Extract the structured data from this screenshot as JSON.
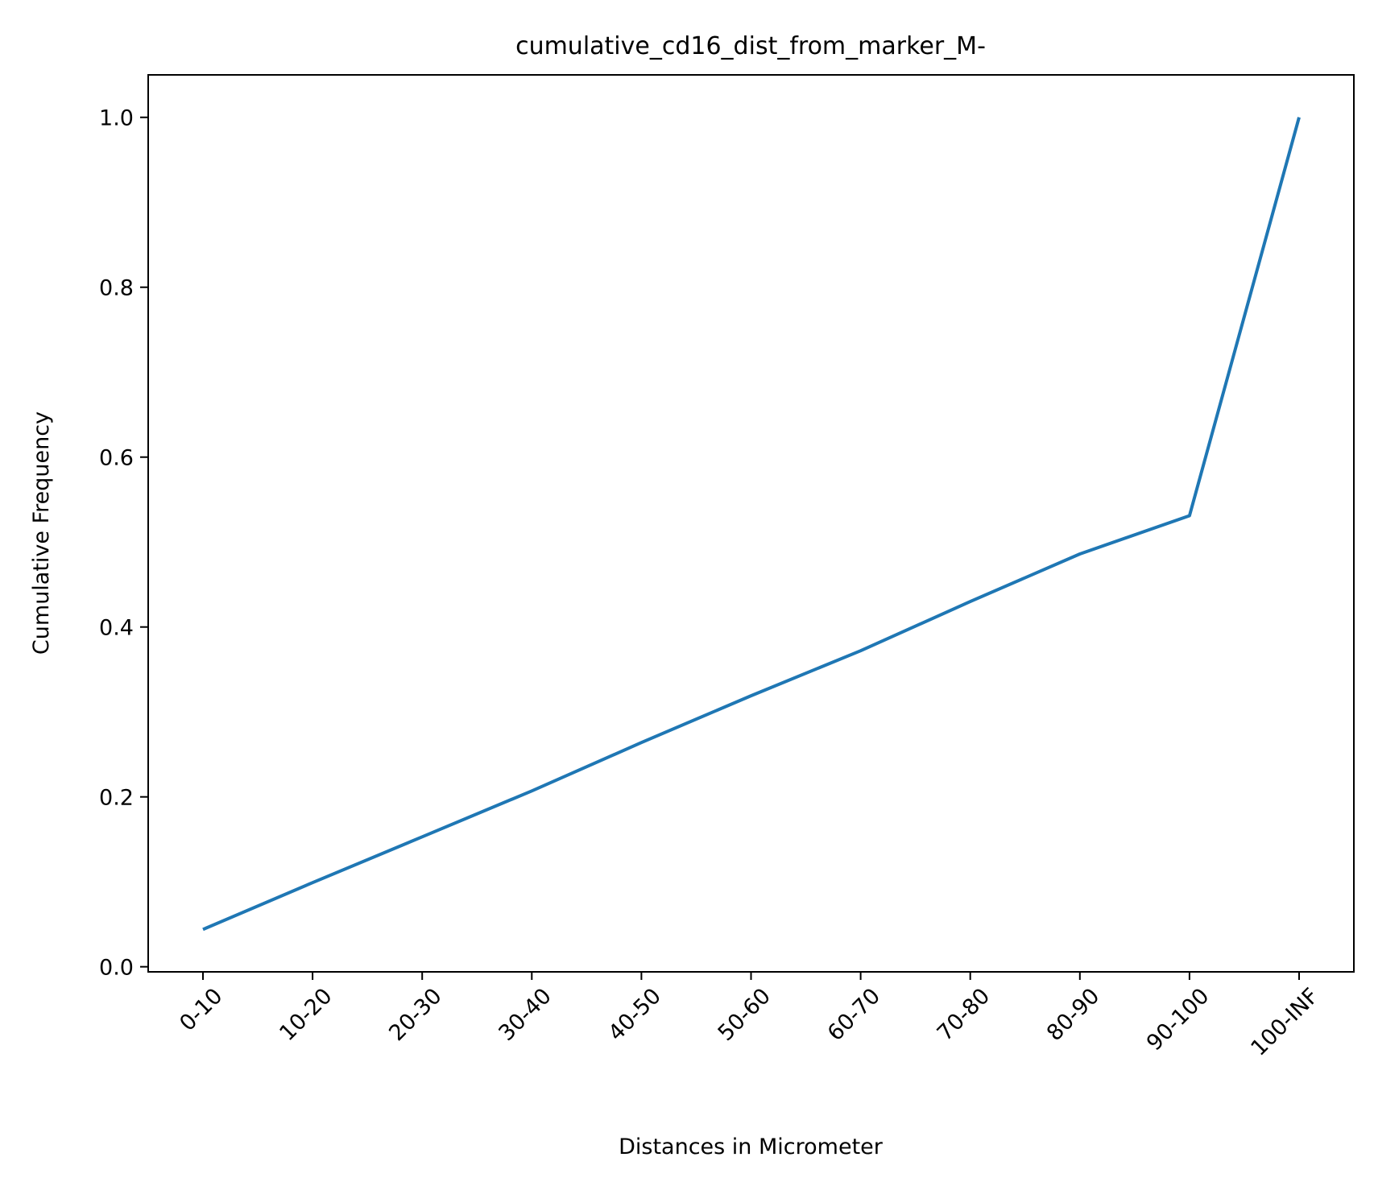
{
  "chart_data": {
    "type": "line",
    "title": "cumulative_cd16_dist_from_marker_M-",
    "xlabel": "Distances in Micrometer",
    "ylabel": "Cumulative Frequency",
    "categories": [
      "0-10",
      "10-20",
      "20-30",
      "30-40",
      "40-50",
      "50-60",
      "60-70",
      "70-80",
      "80-90",
      "90-100",
      "100-INF"
    ],
    "series": [
      {
        "values": [
          0.044,
          0.099,
          0.153,
          0.207,
          0.264,
          0.319,
          0.372,
          0.43,
          0.486,
          0.531,
          1.0
        ],
        "color": "#1f77b4"
      }
    ],
    "ylim": [
      -0.006,
      1.05
    ],
    "yticks": [
      0.0,
      0.2,
      0.4,
      0.6,
      0.8,
      1.0
    ],
    "ytick_labels": [
      "0.0",
      "0.2",
      "0.4",
      "0.6",
      "0.8",
      "1.0"
    ],
    "grid": false,
    "legend": "none"
  }
}
